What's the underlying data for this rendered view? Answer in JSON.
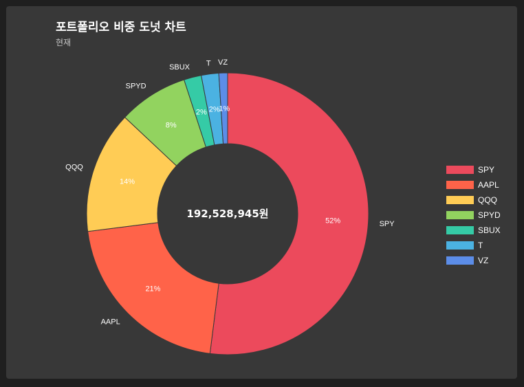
{
  "header": {
    "title": "포트폴리오 비중 도넛 차트",
    "subtitle": "현재"
  },
  "chart_data": {
    "type": "pie",
    "center_label": "192,528,945원",
    "categories": [
      "SPY",
      "AAPL",
      "QQQ",
      "SPYD",
      "SBUX",
      "T",
      "VZ"
    ],
    "values": [
      52,
      21,
      14,
      8,
      2,
      2,
      1
    ],
    "value_labels": [
      "52%",
      "21%",
      "14%",
      "8%",
      "2%",
      "2%",
      "1%"
    ],
    "colors": [
      "#ec4a5c",
      "#ff6349",
      "#ffcc55",
      "#92d35f",
      "#35cba6",
      "#4bb2e2",
      "#5c8de8"
    ],
    "legend_position": "right"
  }
}
